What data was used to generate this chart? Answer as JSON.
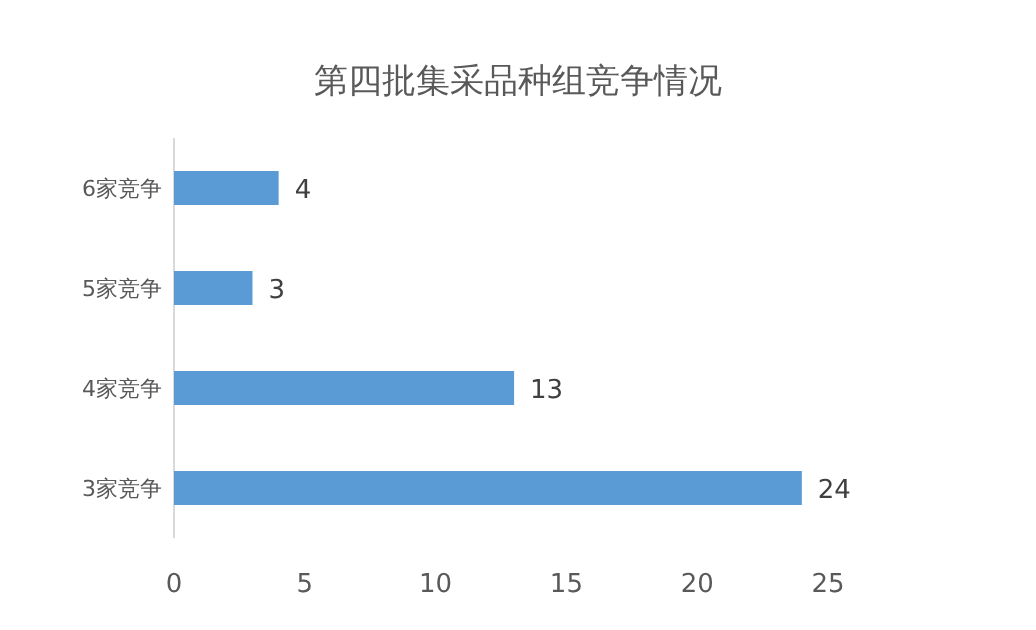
{
  "chart_data": {
    "type": "bar",
    "orientation": "horizontal",
    "title": "第四批集采品种组竞争情况",
    "categories": [
      "6家竞争",
      "5家竞争",
      "4家竞争",
      "3家竞争"
    ],
    "values": [
      4,
      3,
      13,
      24
    ],
    "color": "#5b9bd5",
    "xlim": [
      0,
      25
    ],
    "xticks": [
      0,
      5,
      10,
      15,
      20,
      25
    ],
    "data_labels": true
  }
}
